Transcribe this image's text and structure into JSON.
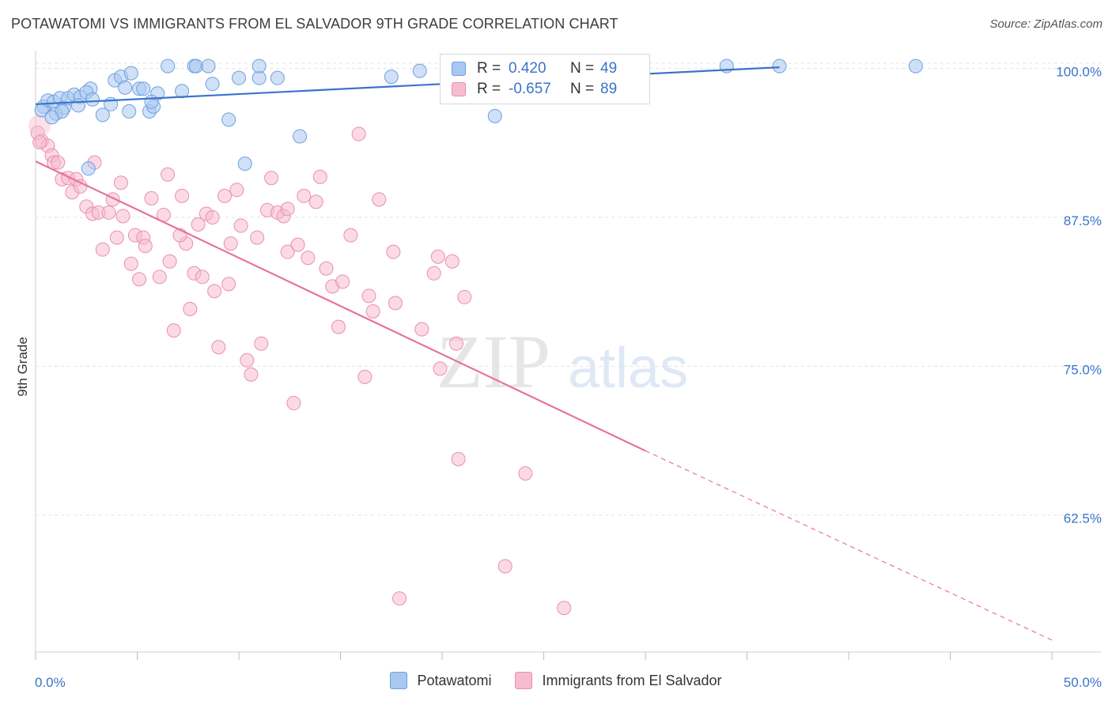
{
  "title": "POTAWATOMI VS IMMIGRANTS FROM EL SALVADOR 9TH GRADE CORRELATION CHART",
  "source": "Source: ZipAtlas.com",
  "watermark": {
    "zip": "ZIP",
    "atlas": "atlas"
  },
  "legend": {
    "rows": [
      {
        "r_label": "R =",
        "r_value": "0.420",
        "n_label": "N =",
        "n_value": "49",
        "color": "#a9c8f0",
        "border": "#6f9fe0"
      },
      {
        "r_label": "R =",
        "r_value": "-0.657",
        "n_label": "N =",
        "n_value": "89",
        "color": "#f7bcd0",
        "border": "#e98fae"
      }
    ]
  },
  "bottom_legend": [
    "Potawatomi",
    "Immigrants from El Salvador"
  ],
  "chart_data": {
    "type": "scatter",
    "title": "POTAWATOMI VS IMMIGRANTS FROM EL SALVADOR 9TH GRADE CORRELATION CHART",
    "xlabel": "",
    "ylabel": "9th Grade",
    "xlim": [
      0,
      50
    ],
    "ylim": [
      51,
      101.5
    ],
    "x_tick_labels": [
      "0.0%",
      "50.0%"
    ],
    "y_ticks": [
      62.5,
      75.0,
      87.5,
      100.0
    ],
    "y_tick_labels": [
      "62.5%",
      "75.0%",
      "87.5%",
      "100.0%"
    ],
    "grid": true,
    "colors": {
      "blue": "#3a74c9",
      "pink": "#e8729b"
    },
    "series": [
      {
        "name": "Potawatomi",
        "color": "#a9c8f0",
        "stroke": "#6f9fe0",
        "points": [
          [
            0.4,
            96.8
          ],
          [
            0.6,
            97.3
          ],
          [
            0.9,
            97.2
          ],
          [
            1.0,
            96.2
          ],
          [
            1.2,
            97.5
          ],
          [
            1.4,
            96.7
          ],
          [
            1.6,
            97.5
          ],
          [
            1.9,
            97.8
          ],
          [
            2.2,
            97.6
          ],
          [
            2.7,
            98.3
          ],
          [
            2.5,
            98.0
          ],
          [
            2.8,
            97.4
          ],
          [
            3.3,
            96.1
          ],
          [
            3.9,
            99.0
          ],
          [
            4.2,
            99.3
          ],
          [
            4.4,
            98.4
          ],
          [
            4.7,
            99.6
          ],
          [
            5.1,
            98.3
          ],
          [
            5.3,
            98.3
          ],
          [
            4.6,
            96.4
          ],
          [
            5.6,
            96.4
          ],
          [
            5.8,
            96.8
          ],
          [
            6.0,
            97.9
          ],
          [
            7.2,
            98.1
          ],
          [
            6.5,
            100.2
          ],
          [
            7.8,
            100.2
          ],
          [
            7.9,
            100.2
          ],
          [
            8.5,
            100.2
          ],
          [
            8.7,
            98.7
          ],
          [
            9.5,
            95.7
          ],
          [
            10.0,
            99.2
          ],
          [
            11.0,
            99.2
          ],
          [
            11.0,
            100.2
          ],
          [
            11.9,
            99.2
          ],
          [
            13.0,
            94.3
          ],
          [
            2.6,
            91.6
          ],
          [
            10.3,
            92.0
          ],
          [
            17.5,
            99.3
          ],
          [
            18.9,
            99.8
          ],
          [
            22.6,
            96.0
          ],
          [
            34.0,
            100.2
          ],
          [
            36.6,
            100.2
          ],
          [
            43.3,
            100.2
          ],
          [
            0.3,
            96.5
          ],
          [
            1.3,
            96.4
          ],
          [
            3.7,
            97.0
          ],
          [
            5.7,
            97.2
          ],
          [
            0.8,
            95.9
          ],
          [
            2.1,
            96.9
          ]
        ],
        "trend": {
          "x1": 0,
          "y1": 97.0,
          "x2": 36.6,
          "y2": 100.1
        }
      },
      {
        "name": "Immigrants from El Salvador",
        "color": "#f7bcd0",
        "stroke": "#e98fae",
        "points": [
          [
            0.1,
            94.6
          ],
          [
            0.3,
            93.9
          ],
          [
            0.6,
            93.5
          ],
          [
            0.8,
            92.7
          ],
          [
            0.9,
            92.1
          ],
          [
            1.1,
            92.1
          ],
          [
            1.3,
            90.7
          ],
          [
            1.6,
            90.8
          ],
          [
            1.8,
            89.6
          ],
          [
            2.0,
            90.7
          ],
          [
            2.2,
            90.1
          ],
          [
            2.5,
            88.4
          ],
          [
            2.8,
            87.8
          ],
          [
            2.9,
            92.1
          ],
          [
            3.1,
            87.9
          ],
          [
            3.3,
            84.8
          ],
          [
            3.6,
            87.9
          ],
          [
            3.8,
            89.0
          ],
          [
            4.0,
            85.8
          ],
          [
            4.2,
            90.4
          ],
          [
            4.3,
            87.6
          ],
          [
            4.7,
            83.6
          ],
          [
            4.9,
            86.0
          ],
          [
            5.1,
            82.3
          ],
          [
            5.3,
            85.8
          ],
          [
            5.4,
            85.1
          ],
          [
            5.7,
            89.1
          ],
          [
            6.1,
            82.5
          ],
          [
            6.3,
            87.7
          ],
          [
            6.5,
            91.1
          ],
          [
            6.6,
            83.8
          ],
          [
            6.8,
            78.0
          ],
          [
            7.2,
            89.3
          ],
          [
            7.4,
            85.3
          ],
          [
            7.6,
            79.8
          ],
          [
            7.8,
            82.8
          ],
          [
            8.0,
            86.9
          ],
          [
            8.2,
            82.5
          ],
          [
            8.4,
            87.8
          ],
          [
            8.7,
            87.5
          ],
          [
            8.8,
            81.3
          ],
          [
            9.0,
            76.6
          ],
          [
            9.3,
            89.3
          ],
          [
            9.5,
            81.9
          ],
          [
            9.6,
            85.3
          ],
          [
            9.9,
            89.8
          ],
          [
            10.1,
            86.8
          ],
          [
            10.4,
            75.5
          ],
          [
            10.6,
            74.3
          ],
          [
            10.9,
            85.8
          ],
          [
            11.1,
            76.9
          ],
          [
            11.4,
            88.1
          ],
          [
            11.6,
            90.8
          ],
          [
            11.9,
            87.9
          ],
          [
            12.2,
            87.6
          ],
          [
            12.4,
            84.6
          ],
          [
            12.7,
            71.9
          ],
          [
            12.9,
            85.2
          ],
          [
            13.2,
            89.3
          ],
          [
            13.4,
            84.1
          ],
          [
            13.8,
            88.8
          ],
          [
            14.0,
            90.9
          ],
          [
            14.3,
            83.2
          ],
          [
            14.6,
            81.7
          ],
          [
            14.9,
            78.3
          ],
          [
            15.1,
            82.1
          ],
          [
            15.5,
            86.0
          ],
          [
            15.9,
            94.5
          ],
          [
            16.2,
            74.1
          ],
          [
            16.4,
            80.9
          ],
          [
            16.6,
            79.6
          ],
          [
            16.9,
            89.0
          ],
          [
            17.6,
            84.6
          ],
          [
            17.7,
            80.3
          ],
          [
            17.9,
            55.5
          ],
          [
            19.0,
            78.1
          ],
          [
            19.6,
            82.8
          ],
          [
            19.8,
            84.2
          ],
          [
            19.9,
            74.8
          ],
          [
            20.5,
            83.8
          ],
          [
            20.7,
            76.9
          ],
          [
            20.8,
            67.2
          ],
          [
            21.1,
            80.8
          ],
          [
            23.1,
            58.2
          ],
          [
            24.1,
            66.0
          ],
          [
            26.0,
            54.7
          ],
          [
            12.4,
            88.2
          ],
          [
            7.1,
            86.0
          ],
          [
            0.2,
            93.8
          ]
        ],
        "trend": {
          "x1": 0,
          "y1": 92.2,
          "x2": 30.0,
          "y2": 67.9
        },
        "trend_extension": {
          "x1": 30.0,
          "y1": 67.9,
          "x2": 50.0,
          "y2": 52.0
        }
      }
    ]
  }
}
